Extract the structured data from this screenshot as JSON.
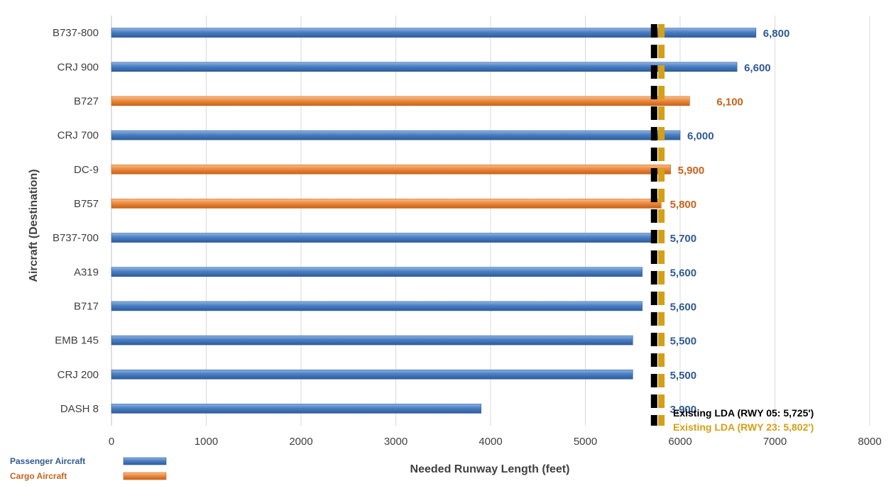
{
  "chart_data": {
    "type": "bar",
    "orientation": "horizontal",
    "xlabel": "Needed Runway Length (feet)",
    "ylabel": "Aircraft (Destination)",
    "xlim": [
      0,
      8000
    ],
    "x_ticks": [
      "0",
      "1000",
      "2000",
      "3000",
      "4000",
      "5000",
      "6000",
      "7000",
      "8000"
    ],
    "grid": true,
    "categories": [
      "B737-800",
      "CRJ 900",
      "B727",
      "CRJ 700",
      "DC-9",
      "B757",
      "B737-700",
      "A319",
      "B717",
      "EMB 145",
      "CRJ 200",
      "DASH 8"
    ],
    "values": [
      6800,
      6600,
      6100,
      6000,
      5900,
      5800,
      5700,
      5600,
      5600,
      5500,
      5500,
      3900
    ],
    "value_labels": [
      "6,800",
      "6,600",
      "6,100",
      "6,000",
      "5,900",
      "5,800",
      "5,700",
      "5,600",
      "5,600",
      "5,500",
      "5,500",
      "3,900"
    ],
    "bar_group": [
      "passenger",
      "passenger",
      "cargo",
      "passenger",
      "cargo",
      "cargo",
      "passenger",
      "passenger",
      "passenger",
      "passenger",
      "passenger",
      "passenger"
    ],
    "groups": {
      "passenger": {
        "name": "Passenger Aircraft",
        "color": "#4a7fc4",
        "label_color": "#2f5a91"
      },
      "cargo": {
        "name": "Cargo Aircraft",
        "color": "#ef8a3c",
        "label_color": "#c5631d"
      }
    },
    "reference_lines": [
      {
        "value": 5725,
        "label": "Existing LDA (RWY 05: 5,725')",
        "color": "#000000"
      },
      {
        "value": 5802,
        "label": "Existing LDA (RWY 23: 5,802')",
        "color": "#d4a017"
      }
    ],
    "legend_position": "bottom-left"
  }
}
